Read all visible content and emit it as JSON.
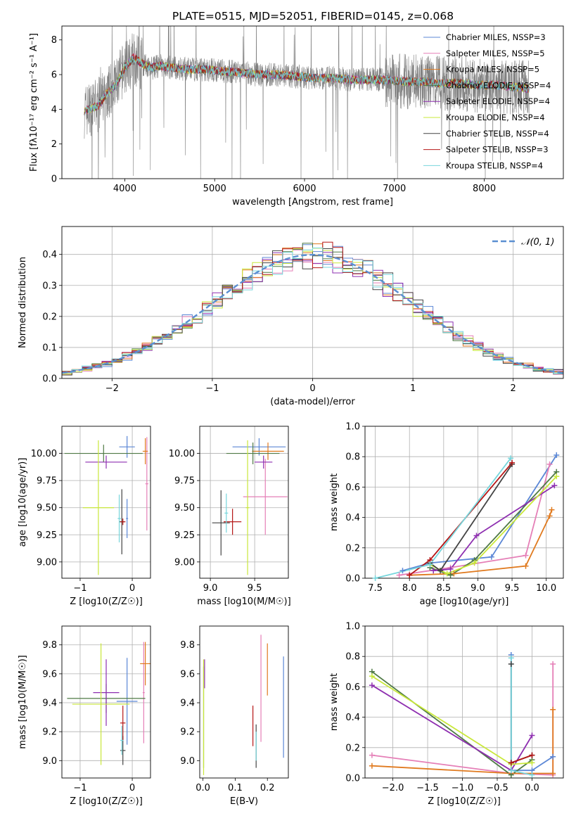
{
  "figure_title": "PLATE=0515, MJD=52051, FIBERID=0145, z=0.068",
  "colors": {
    "Chabrier MILES": "#5b87d6",
    "Salpeter MILES": "#e57fb7",
    "Kroupa MILES": "#e07a1f",
    "Chabrier ELODIE": "#4f7a45",
    "Salpeter ELODIE": "#8e2fb0",
    "Kroupa ELODIE": "#c9e83a",
    "Chabrier STELIB": "#444444",
    "Salpeter STELIB": "#b51616",
    "Kroupa STELIB": "#77d6dc",
    "data": "#808080",
    "normal": "#5b8fd1"
  },
  "chart_data": [
    {
      "id": "spectrum",
      "type": "line",
      "xlabel": "wavelength [Angstrom, rest frame]",
      "ylabel": "Flux [fλ10⁻¹⁷ erg cm⁻² s⁻¹ A⁻¹]",
      "xlim": [
        3300,
        8880
      ],
      "ylim": [
        0,
        8.8
      ],
      "xticks": [
        4000,
        5000,
        6000,
        7000,
        8000
      ],
      "yticks": [
        0,
        2,
        4,
        6,
        8
      ],
      "grid": false,
      "legend_position": "right",
      "legend": [
        "Chabrier MILES, NSSP=3",
        "Salpeter MILES, NSSP=5",
        "Kroupa MILES, NSSP=5",
        "Chabrier ELODIE, NSSP=4",
        "Salpeter ELODIE, NSSP=4",
        "Kroupa ELODIE, NSSP=4",
        "Chabrier STELIB, NSSP=4",
        "Salpeter STELIB, NSSP=3",
        "Kroupa STELIB, NSSP=4"
      ],
      "model_continuum": {
        "x": [
          3550,
          3700,
          3800,
          3900,
          4000,
          4100,
          4200,
          4300,
          4400,
          4500,
          4700,
          4900,
          5100,
          5300,
          5500,
          5700,
          5900,
          6100,
          6300,
          6500,
          6700,
          6900,
          7100,
          7300,
          7500,
          7700,
          7900,
          8100,
          8300,
          8500
        ],
        "y": [
          4.5,
          4.8,
          5.5,
          6.0,
          7.0,
          7.6,
          7.2,
          7.0,
          7.1,
          7.0,
          6.9,
          6.9,
          6.8,
          6.7,
          6.6,
          6.6,
          6.5,
          6.4,
          6.4,
          6.3,
          6.3,
          6.3,
          6.2,
          6.2,
          6.1,
          6.1,
          6.0,
          6.0,
          5.9,
          5.8
        ]
      }
    },
    {
      "id": "residuals",
      "type": "line",
      "xlabel": "(data-model)/error",
      "ylabel": "Normed distribution",
      "xlim": [
        -2.5,
        2.5
      ],
      "ylim": [
        0,
        0.49
      ],
      "xticks": [
        -2,
        -1,
        0,
        1,
        2
      ],
      "yticks": [
        0.0,
        0.1,
        0.2,
        0.3,
        0.4
      ],
      "grid": true,
      "legend": [
        "𝒩(0, 1)"
      ],
      "legend_position": "top-right",
      "normal_curve": {
        "mean": 0,
        "sigma": 1
      }
    },
    {
      "id": "age_vs_Z",
      "type": "scatter",
      "xlabel": "Z [log10(Z/Z☉)]",
      "ylabel": "age  [log10(age/yr)]",
      "xlim": [
        -1.35,
        0.35
      ],
      "ylim": [
        8.85,
        10.25
      ],
      "xticks": [
        -1,
        0
      ],
      "yticks": [
        9.0,
        9.25,
        9.5,
        9.75,
        10.0
      ],
      "grid": true
    },
    {
      "id": "age_vs_mass",
      "type": "scatter",
      "xlabel": "mass [log10(M/M☉)]",
      "ylabel": "",
      "xlim": [
        8.88,
        9.88
      ],
      "ylim": [
        8.85,
        10.25
      ],
      "xticks": [
        9.0,
        9.5
      ],
      "yticks": [
        9.0,
        9.25,
        9.5,
        9.75,
        10.0
      ],
      "grid": true
    },
    {
      "id": "weight_vs_age",
      "type": "line",
      "xlabel": "age  [log10(age/yr)]",
      "ylabel": "mass weight",
      "xlim": [
        7.35,
        10.25
      ],
      "ylim": [
        0,
        1.0
      ],
      "xticks": [
        7.5,
        8.0,
        8.5,
        9.0,
        9.5,
        10.0
      ],
      "yticks": [
        0.0,
        0.2,
        0.4,
        0.6,
        0.8,
        1.0
      ],
      "grid": true,
      "series": [
        {
          "name": "Chabrier MILES",
          "x": [
            7.9,
            8.3,
            9.2,
            10.15
          ],
          "y": [
            0.05,
            0.1,
            0.14,
            0.81
          ]
        },
        {
          "name": "Salpeter MILES",
          "x": [
            7.85,
            8.6,
            9.7,
            10.05
          ],
          "y": [
            0.02,
            0.07,
            0.15,
            0.75
          ]
        },
        {
          "name": "Kroupa MILES",
          "x": [
            8.0,
            8.65,
            9.7,
            10.05,
            10.08
          ],
          "y": [
            0.02,
            0.03,
            0.08,
            0.41,
            0.45
          ]
        },
        {
          "name": "Chabrier ELODIE",
          "x": [
            8.3,
            8.6,
            8.95,
            10.15
          ],
          "y": [
            0.07,
            0.02,
            0.12,
            0.7
          ]
        },
        {
          "name": "Salpeter ELODIE",
          "x": [
            8.35,
            8.6,
            8.98,
            10.12
          ],
          "y": [
            0.05,
            0.06,
            0.28,
            0.61
          ]
        },
        {
          "name": "Kroupa ELODIE",
          "x": [
            8.3,
            8.55,
            8.95,
            10.15
          ],
          "y": [
            0.09,
            0.03,
            0.1,
            0.67
          ]
        },
        {
          "name": "Chabrier STELIB",
          "x": [
            8.3,
            8.45,
            9.5
          ],
          "y": [
            0.1,
            0.05,
            0.75
          ]
        },
        {
          "name": "Salpeter STELIB",
          "x": [
            8.0,
            8.3,
            9.5
          ],
          "y": [
            0.02,
            0.12,
            0.76
          ]
        },
        {
          "name": "Kroupa STELIB",
          "x": [
            7.5,
            8.3,
            9.48
          ],
          "y": [
            0.0,
            0.09,
            0.79
          ]
        }
      ]
    },
    {
      "id": "mass_vs_Z",
      "type": "scatter",
      "xlabel": "Z [log10(Z/Z☉)]",
      "ylabel": "mass [log10(M/M☉)]",
      "xlim": [
        -1.35,
        0.35
      ],
      "ylim": [
        8.88,
        9.93
      ],
      "xticks": [
        -1,
        0
      ],
      "yticks": [
        9.0,
        9.2,
        9.4,
        9.6,
        9.8
      ],
      "grid": true
    },
    {
      "id": "mass_vs_ebv",
      "type": "scatter",
      "xlabel": "E(B-V)",
      "ylabel": "",
      "xlim": [
        -0.01,
        0.265
      ],
      "ylim": [
        8.88,
        9.93
      ],
      "xticks": [
        0.0,
        0.1,
        0.2
      ],
      "yticks": [
        9.0,
        9.2,
        9.4,
        9.6,
        9.8
      ],
      "grid": false
    },
    {
      "id": "weight_vs_Z",
      "type": "line",
      "xlabel": "Z [log10(Z/Z☉)]",
      "ylabel": "mass weight",
      "xlim": [
        -2.4,
        0.45
      ],
      "ylim": [
        0,
        1.0
      ],
      "xticks": [
        -2.0,
        -1.5,
        -1.0,
        -0.5,
        0.0
      ],
      "yticks": [
        0.0,
        0.2,
        0.4,
        0.6,
        0.8,
        1.0
      ],
      "grid": true,
      "series": [
        {
          "name": "Chabrier MILES",
          "x": [
            -0.3,
            -0.3,
            0.0,
            0.3
          ],
          "y": [
            0.81,
            0.05,
            0.05,
            0.14
          ]
        },
        {
          "name": "Salpeter MILES",
          "x": [
            -2.3,
            -0.3,
            0.3,
            0.3
          ],
          "y": [
            0.15,
            0.03,
            0.02,
            0.75
          ]
        },
        {
          "name": "Kroupa MILES",
          "x": [
            -2.3,
            -0.3,
            0.3,
            0.3
          ],
          "y": [
            0.08,
            0.03,
            0.03,
            0.45
          ]
        },
        {
          "name": "Chabrier ELODIE",
          "x": [
            -2.3,
            -0.3,
            0.0
          ],
          "y": [
            0.7,
            0.02,
            0.12
          ]
        },
        {
          "name": "Salpeter ELODIE",
          "x": [
            -2.3,
            -0.3,
            0.0
          ],
          "y": [
            0.61,
            0.05,
            0.28
          ]
        },
        {
          "name": "Kroupa ELODIE",
          "x": [
            -2.3,
            -0.3,
            0.0
          ],
          "y": [
            0.67,
            0.09,
            0.1
          ]
        },
        {
          "name": "Chabrier STELIB",
          "x": [
            -0.3,
            -0.3,
            0.0
          ],
          "y": [
            0.75,
            0.1,
            0.15
          ]
        },
        {
          "name": "Salpeter STELIB",
          "x": [
            -0.3,
            0.0
          ],
          "y": [
            0.1,
            0.15
          ]
        },
        {
          "name": "Kroupa STELIB",
          "x": [
            -0.3,
            -0.3,
            0.0
          ],
          "y": [
            0.79,
            0.05,
            0.02
          ]
        }
      ]
    }
  ],
  "errorbars": {
    "age_vs_Z": [
      {
        "m": "Chabrier MILES",
        "x": -0.1,
        "xe": 0.15,
        "y": 10.06,
        "ye": 0.1
      },
      {
        "m": "Chabrier MILES",
        "x": -0.1,
        "xe": 0.02,
        "y": 9.4,
        "ye": 0.18
      },
      {
        "m": "Salpeter MILES",
        "x": 0.28,
        "xe": 0.03,
        "y": 9.72,
        "ye": 0.43
      },
      {
        "m": "Kroupa MILES",
        "x": 0.25,
        "xe": 0.05,
        "y": 10.02,
        "ye": 0.12
      },
      {
        "m": "Chabrier ELODIE",
        "x": -0.55,
        "xe": 0.75,
        "y": 10.0,
        "ye": 0.08
      },
      {
        "m": "Salpeter ELODIE",
        "x": -0.5,
        "xe": 0.4,
        "y": 9.92,
        "ye": 0.06
      },
      {
        "m": "Kroupa ELODIE",
        "x": -0.65,
        "xe": 0.3,
        "y": 9.5,
        "ye": 0.62
      },
      {
        "m": "Chabrier STELIB",
        "x": -0.2,
        "xe": 0.05,
        "y": 9.37,
        "ye": 0.3
      },
      {
        "m": "Salpeter STELIB",
        "x": -0.18,
        "xe": 0.05,
        "y": 9.37,
        "ye": 0.03
      },
      {
        "m": "Kroupa STELIB",
        "x": -0.25,
        "xe": 0.03,
        "y": 9.4,
        "ye": 0.22
      }
    ],
    "age_vs_mass": [
      {
        "m": "Chabrier MILES",
        "x": 9.55,
        "xe": 0.3,
        "y": 10.06,
        "ye": 0.08
      },
      {
        "m": "Salpeter MILES",
        "x": 9.62,
        "xe": 0.25,
        "y": 9.6,
        "ye": 0.35
      },
      {
        "m": "Kroupa MILES",
        "x": 9.65,
        "xe": 0.18,
        "y": 10.02,
        "ye": 0.08
      },
      {
        "m": "Chabrier ELODIE",
        "x": 9.48,
        "xe": 0.3,
        "y": 10.0,
        "ye": 0.1
      },
      {
        "m": "Salpeter ELODIE",
        "x": 9.6,
        "xe": 0.1,
        "y": 9.92,
        "ye": 0.06
      },
      {
        "m": "Kroupa ELODIE",
        "x": 9.42,
        "xe": 0.02,
        "y": 9.5,
        "ye": 0.62
      },
      {
        "m": "Chabrier STELIB",
        "x": 9.12,
        "xe": 0.1,
        "y": 9.36,
        "ye": 0.3
      },
      {
        "m": "Salpeter STELIB",
        "x": 9.25,
        "xe": 0.1,
        "y": 9.37,
        "ye": 0.12
      },
      {
        "m": "Kroupa STELIB",
        "x": 9.18,
        "xe": 0.02,
        "y": 9.45,
        "ye": 0.18
      }
    ],
    "mass_vs_Z": [
      {
        "m": "Chabrier MILES",
        "x": -0.1,
        "xe": 0.2,
        "y": 9.41,
        "ye": 0.3
      },
      {
        "m": "Salpeter MILES",
        "x": 0.22,
        "xe": 0.02,
        "y": 9.47,
        "ye": 0.35
      },
      {
        "m": "Kroupa MILES",
        "x": 0.25,
        "xe": 0.1,
        "y": 9.67,
        "ye": 0.15
      },
      {
        "m": "Chabrier ELODIE",
        "x": -0.5,
        "xe": 0.75,
        "y": 9.43,
        "ye": 0.1
      },
      {
        "m": "Salpeter ELODIE",
        "x": -0.5,
        "xe": 0.25,
        "y": 9.47,
        "ye": 0.23
      },
      {
        "m": "Kroupa ELODIE",
        "x": -0.6,
        "xe": 0.55,
        "y": 9.39,
        "ye": 0.42
      },
      {
        "m": "Chabrier STELIB",
        "x": -0.18,
        "xe": 0.05,
        "y": 9.07,
        "ye": 0.1
      },
      {
        "m": "Salpeter STELIB",
        "x": -0.18,
        "xe": 0.05,
        "y": 9.26,
        "ye": 0.12
      },
      {
        "m": "Kroupa STELIB",
        "x": -0.2,
        "xe": 0.03,
        "y": 9.14,
        "ye": 0.1
      }
    ],
    "mass_vs_ebv": [
      {
        "m": "Chabrier MILES",
        "x": 0.25,
        "xe": 0.0,
        "y": 9.37,
        "ye": 0.35
      },
      {
        "m": "Salpeter MILES",
        "x": 0.18,
        "xe": 0.0,
        "y": 9.5,
        "ye": 0.37
      },
      {
        "m": "Kroupa MILES",
        "x": 0.2,
        "xe": 0.0,
        "y": 9.63,
        "ye": 0.18
      },
      {
        "m": "Chabrier ELODIE",
        "x": 0.002,
        "xe": 0.0,
        "y": 9.3,
        "ye": 0.35
      },
      {
        "m": "Salpeter ELODIE",
        "x": 0.005,
        "xe": 0.0,
        "y": 9.6,
        "ye": 0.1
      },
      {
        "m": "Kroupa ELODIE",
        "x": 0.002,
        "xe": 0.0,
        "y": 9.3,
        "ye": 0.4
      },
      {
        "m": "Chabrier STELIB",
        "x": 0.165,
        "xe": 0.0,
        "y": 9.1,
        "ye": 0.15
      },
      {
        "m": "Salpeter STELIB",
        "x": 0.155,
        "xe": 0.0,
        "y": 9.24,
        "ye": 0.14
      },
      {
        "m": "Kroupa STELIB",
        "x": 0.165,
        "xe": 0.0,
        "y": 9.1,
        "ye": 0.1
      }
    ]
  }
}
